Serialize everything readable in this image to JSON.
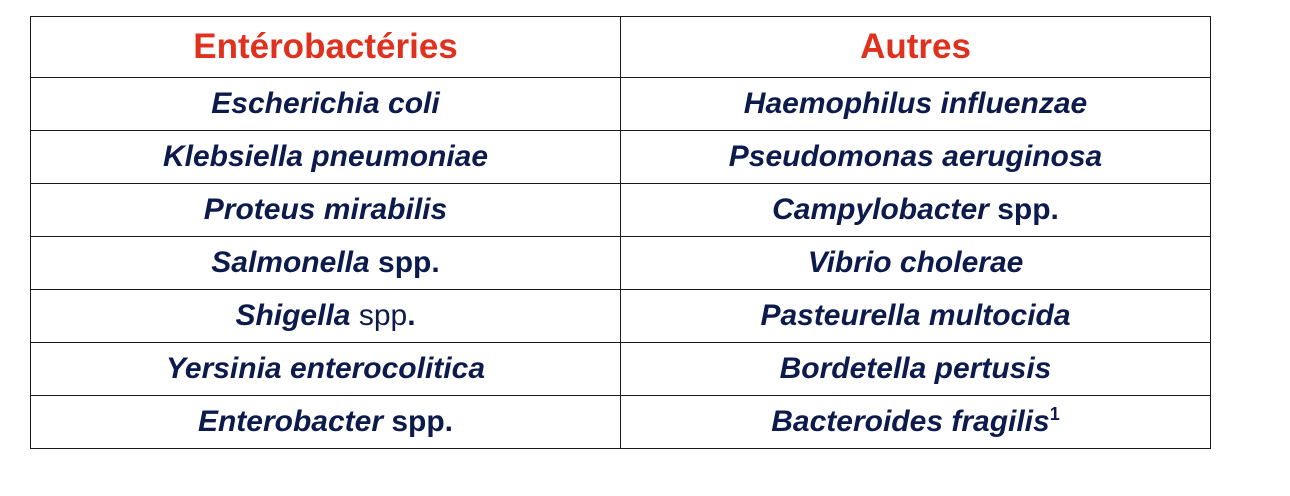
{
  "headers": {
    "col1": "Entérobactéries",
    "col2": "Autres"
  },
  "rows": [
    {
      "left": {
        "name": "Escherichia coli",
        "suffix": ""
      },
      "right": {
        "name": "Haemophilus influenzae",
        "suffix": ""
      }
    },
    {
      "left": {
        "name": "Klebsiella pneumoniae",
        "suffix": ""
      },
      "right": {
        "name": "Pseudomonas aeruginosa",
        "suffix": ""
      }
    },
    {
      "left": {
        "name": "Proteus mirabilis",
        "suffix": ""
      },
      "right": {
        "name": "Campylobacter",
        "suffix": " spp."
      }
    },
    {
      "left": {
        "name": "Salmonella",
        "suffix": " spp."
      },
      "right": {
        "name": "Vibrio cholerae",
        "suffix": ""
      }
    },
    {
      "left": {
        "name": "Shigella",
        "suffix_light": " spp",
        "suffix": "."
      },
      "right": {
        "name": "Pasteurella multocida",
        "suffix": ""
      }
    },
    {
      "left": {
        "name": "Yersinia enterocolitica",
        "suffix": ""
      },
      "right": {
        "name": "Bordetella pertusis",
        "suffix": ""
      }
    },
    {
      "left": {
        "name": "Enterobacter",
        "suffix": " spp."
      },
      "right": {
        "name": "Bacteroides fragilis",
        "footnote": "1"
      }
    }
  ]
}
